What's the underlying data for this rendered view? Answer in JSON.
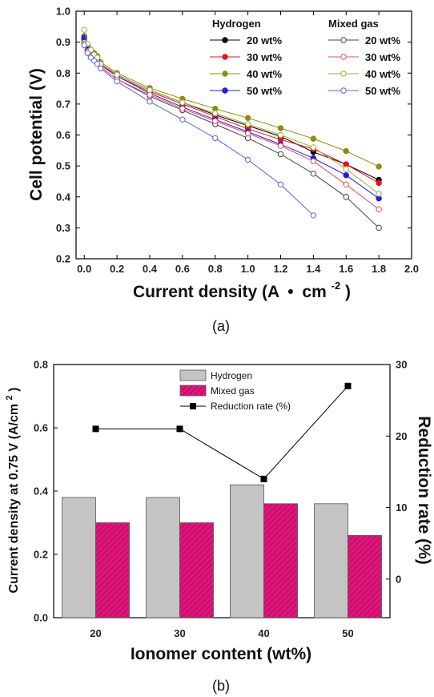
{
  "chart_data": [
    {
      "type": "line",
      "panel_label": "(a)",
      "xlabel": "Current density (A",
      "xlabel_dot": "•",
      "xlabel_unit": "cm",
      "xlabel_exp": "-2",
      "xlabel_close": ")",
      "ylabel": "Cell potential (V)",
      "xlim": [
        -0.05,
        2.0
      ],
      "ylim": [
        0.2,
        1.0
      ],
      "xticks": [
        "0.0",
        "0.2",
        "0.4",
        "0.6",
        "0.8",
        "1.0",
        "1.2",
        "1.4",
        "1.6",
        "1.8",
        "2.0"
      ],
      "yticks": [
        "0.2",
        "0.3",
        "0.4",
        "0.5",
        "0.6",
        "0.7",
        "0.8",
        "0.9",
        "1.0"
      ],
      "legend_groups": [
        "Hydrogen",
        "Mixed gas"
      ],
      "series": [
        {
          "name": "20 wt%",
          "group": "Hydrogen",
          "color": "#000000",
          "filled": true,
          "x": [
            0,
            0.02,
            0.04,
            0.06,
            0.08,
            0.1,
            0.2,
            0.4,
            0.6,
            0.8,
            1.0,
            1.2,
            1.4,
            1.6,
            1.8
          ],
          "y": [
            0.91,
            0.885,
            0.87,
            0.86,
            0.85,
            0.83,
            0.795,
            0.745,
            0.705,
            0.665,
            0.63,
            0.595,
            0.545,
            0.505,
            0.455
          ]
        },
        {
          "name": "30 wt%",
          "group": "Hydrogen",
          "color": "#e8141b",
          "filled": true,
          "x": [
            0,
            0.02,
            0.04,
            0.06,
            0.08,
            0.1,
            0.2,
            0.4,
            0.6,
            0.8,
            1.0,
            1.2,
            1.4,
            1.6,
            1.8
          ],
          "y": [
            0.9,
            0.875,
            0.86,
            0.85,
            0.84,
            0.825,
            0.79,
            0.74,
            0.7,
            0.66,
            0.62,
            0.585,
            0.555,
            0.505,
            0.445
          ]
        },
        {
          "name": "40 wt%",
          "group": "Hydrogen",
          "color": "#8c8c14",
          "filled": true,
          "x": [
            0,
            0.02,
            0.04,
            0.06,
            0.08,
            0.1,
            0.2,
            0.4,
            0.6,
            0.8,
            1.0,
            1.2,
            1.4,
            1.6,
            1.8
          ],
          "y": [
            0.92,
            0.89,
            0.875,
            0.865,
            0.855,
            0.835,
            0.8,
            0.752,
            0.717,
            0.685,
            0.655,
            0.622,
            0.588,
            0.548,
            0.498
          ]
        },
        {
          "name": "50 wt%",
          "group": "Hydrogen",
          "color": "#1e1ee6",
          "filled": true,
          "x": [
            0,
            0.02,
            0.04,
            0.06,
            0.08,
            0.1,
            0.2,
            0.4,
            0.6,
            0.8,
            1.0,
            1.2,
            1.4,
            1.6,
            1.8
          ],
          "y": [
            0.915,
            0.885,
            0.87,
            0.86,
            0.845,
            0.83,
            0.79,
            0.735,
            0.69,
            0.65,
            0.61,
            0.57,
            0.525,
            0.47,
            0.395
          ]
        },
        {
          "name": "20 wt%",
          "group": "Mixed gas",
          "color": "#444444",
          "filled": false,
          "x": [
            0,
            0.02,
            0.04,
            0.06,
            0.08,
            0.1,
            0.2,
            0.4,
            0.6,
            0.8,
            1.0,
            1.2,
            1.4,
            1.6,
            1.8
          ],
          "y": [
            0.9,
            0.87,
            0.855,
            0.845,
            0.835,
            0.82,
            0.78,
            0.725,
            0.68,
            0.635,
            0.59,
            0.538,
            0.475,
            0.4,
            0.3
          ]
        },
        {
          "name": "30 wt%",
          "group": "Mixed gas",
          "color": "#e8505a",
          "filled": false,
          "x": [
            0,
            0.02,
            0.04,
            0.06,
            0.08,
            0.1,
            0.2,
            0.4,
            0.6,
            0.8,
            1.0,
            1.2,
            1.4,
            1.6,
            1.8
          ],
          "y": [
            0.895,
            0.87,
            0.855,
            0.845,
            0.835,
            0.82,
            0.78,
            0.73,
            0.685,
            0.645,
            0.605,
            0.565,
            0.515,
            0.44,
            0.36
          ]
        },
        {
          "name": "40 wt%",
          "group": "Mixed gas",
          "color": "#a8a83c",
          "filled": false,
          "x": [
            0,
            0.02,
            0.04,
            0.06,
            0.08,
            0.1,
            0.2,
            0.4,
            0.6,
            0.8,
            1.0,
            1.2,
            1.4,
            1.6,
            1.8
          ],
          "y": [
            0.94,
            0.895,
            0.875,
            0.86,
            0.85,
            0.83,
            0.795,
            0.745,
            0.705,
            0.67,
            0.635,
            0.6,
            0.56,
            0.49,
            0.41
          ]
        },
        {
          "name": "50 wt%",
          "group": "Mixed gas",
          "color": "#5a64e6",
          "filled": false,
          "x": [
            0,
            0.02,
            0.04,
            0.06,
            0.08,
            0.1,
            0.2,
            0.4,
            0.6,
            0.8,
            1.0,
            1.2,
            1.4
          ],
          "y": [
            0.89,
            0.865,
            0.85,
            0.84,
            0.83,
            0.815,
            0.773,
            0.708,
            0.65,
            0.59,
            0.52,
            0.44,
            0.34
          ]
        }
      ]
    },
    {
      "type": "bar",
      "panel_label": "(b)",
      "xlabel": "Ionomer content (wt%)",
      "ylabel": "Current density at 0.75 V (A/cm",
      "ylabel_exp": "2",
      "ylabel_close": ")",
      "y2label": "Reduction rate (%)",
      "categories": [
        "20",
        "30",
        "40",
        "50"
      ],
      "ylim": [
        0,
        0.8
      ],
      "yticks": [
        "0.0",
        "0.2",
        "0.4",
        "0.6",
        "0.8"
      ],
      "y2lim": [
        -5.4,
        30
      ],
      "y2ticks": [
        "0",
        "10",
        "20",
        "30"
      ],
      "series": [
        {
          "name": "Hydrogen",
          "kind": "bar",
          "color": "#c4c4c4",
          "values": [
            0.38,
            0.38,
            0.42,
            0.36
          ]
        },
        {
          "name": "Mixed gas",
          "kind": "bar",
          "color": "#e0147a",
          "values": [
            0.3,
            0.3,
            0.36,
            0.26
          ]
        },
        {
          "name": "Reduction rate (%)",
          "kind": "line",
          "axis": "right",
          "color": "#000000",
          "values": [
            21,
            21,
            14,
            27
          ]
        }
      ]
    }
  ]
}
